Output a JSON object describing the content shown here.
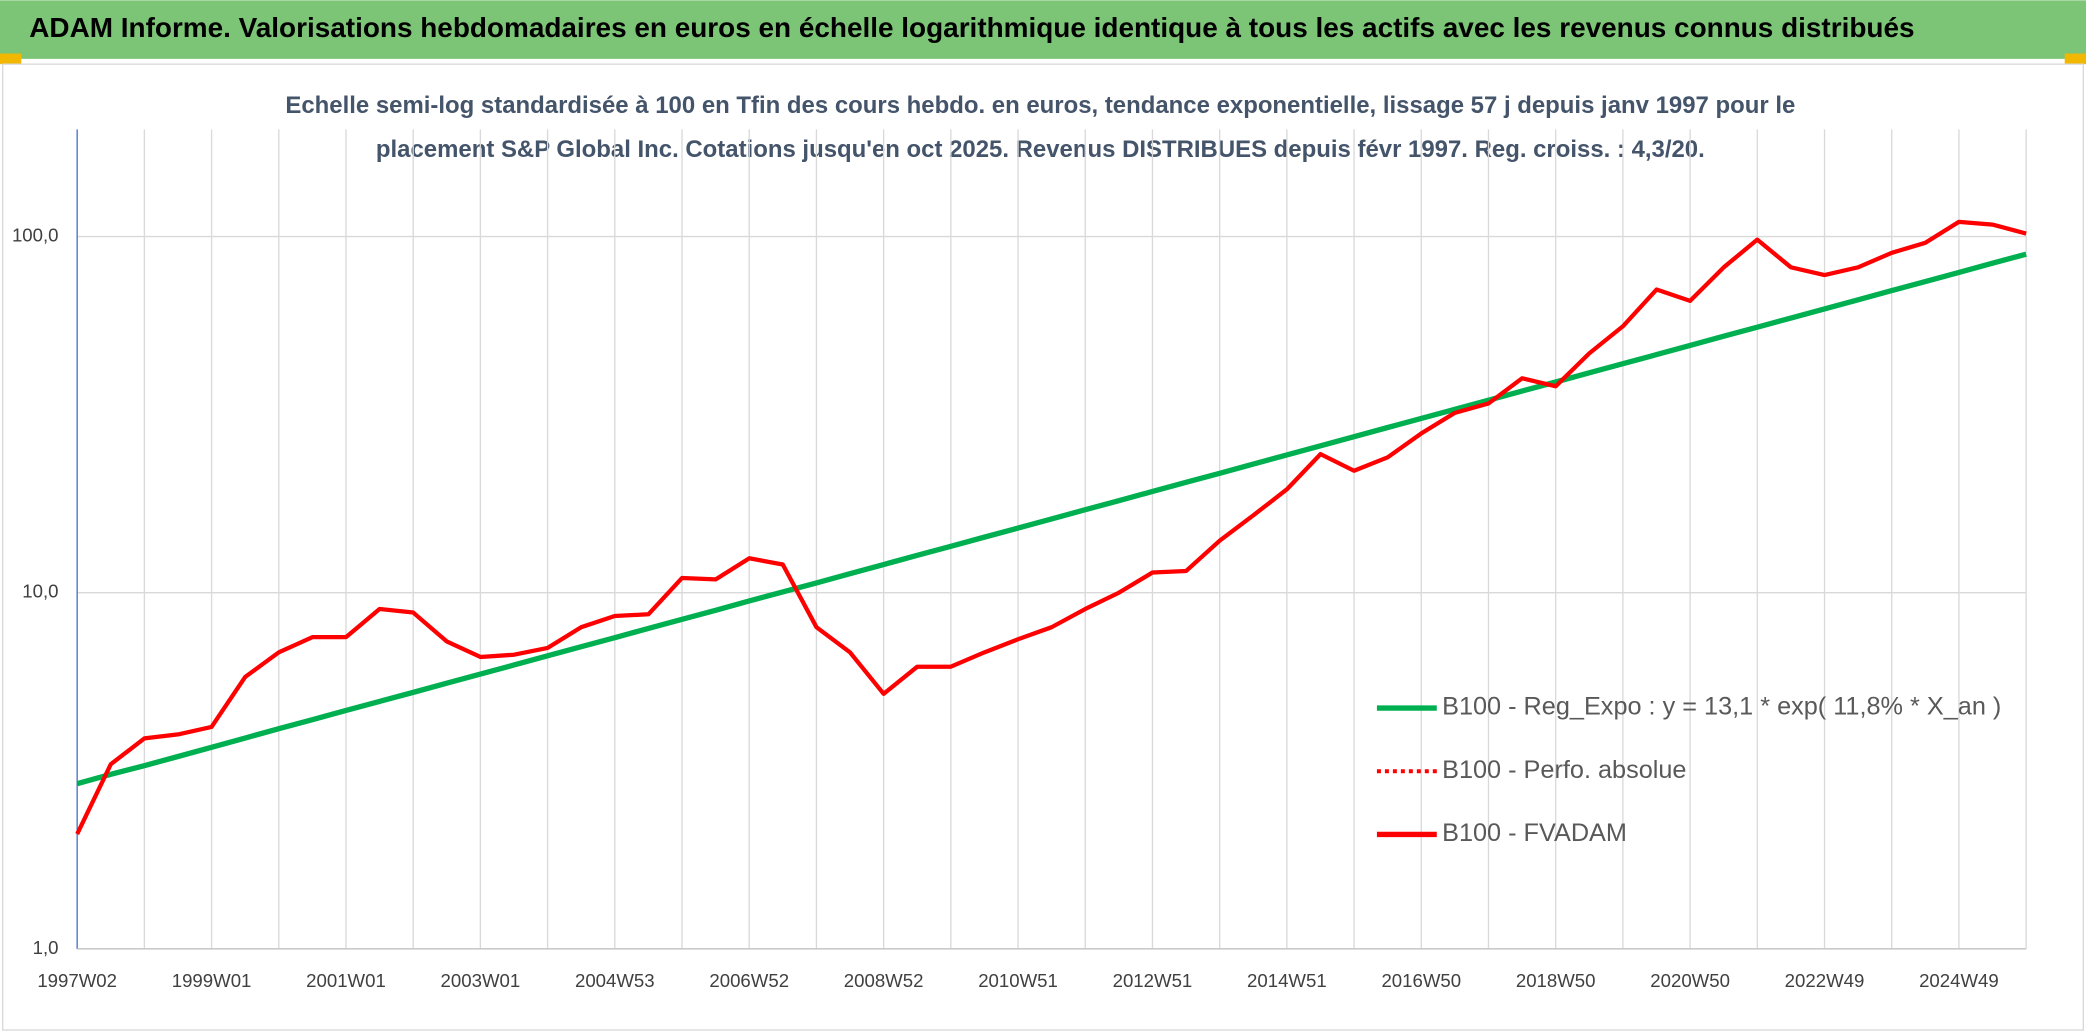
{
  "chart_data": {
    "type": "line",
    "title": "ADAM Informe. Valorisations hebdomadaires en euros en échelle logarithmique identique à tous les actifs avec les revenus connus distribués",
    "subtitle": [
      "Echelle semi-log standardisée à 100 en Tfin des cours hebdo. en euros, tendance exponentielle, lissage 57 j depuis janv 1997 pour le",
      "placement S&P Global Inc. Cotations jusqu'en oct 2025. Revenus DISTRIBUES depuis févr 1997. Reg. croiss. : 4,3/20."
    ],
    "categories": [
      "1997W02",
      null,
      null,
      null,
      "1999W01",
      null,
      null,
      null,
      "2001W01",
      null,
      null,
      null,
      "2003W01",
      null,
      null,
      null,
      "2004W53",
      null,
      null,
      null,
      "2006W52",
      null,
      null,
      null,
      "2008W52",
      null,
      null,
      null,
      "2010W51",
      null,
      null,
      null,
      "2012W51",
      null,
      null,
      null,
      "2014W51",
      null,
      null,
      null,
      "2016W50",
      null,
      null,
      null,
      "2018W50",
      null,
      null,
      null,
      "2020W50",
      null,
      null,
      null,
      "2022W49",
      null,
      null,
      null,
      "2024W49",
      null,
      null
    ],
    "log_scale": true,
    "ylim": [
      1,
      200
    ],
    "yticks": [
      {
        "value": 1,
        "label": "1,0"
      },
      {
        "value": 10,
        "label": "10,0"
      },
      {
        "value": 100,
        "label": "100,0"
      }
    ],
    "grid": true,
    "legend": "right",
    "series": [
      {
        "name": "B100 - Reg_Expo : y = 13,1 * exp( 11,8% *  X_an )",
        "color": "#00b050",
        "line_style": "solid",
        "values": [
          2.91,
          3.09,
          3.27,
          3.47,
          3.68,
          3.91,
          4.15,
          4.4,
          4.67,
          4.95,
          5.25,
          5.57,
          5.91,
          6.27,
          6.65,
          7.05,
          7.48,
          7.94,
          8.42,
          8.93,
          9.48,
          10.05,
          10.66,
          11.31,
          12.0,
          12.73,
          13.5,
          14.32,
          15.19,
          16.12,
          17.1,
          18.14,
          19.24,
          20.41,
          21.65,
          22.97,
          24.37,
          25.85,
          27.42,
          29.09,
          30.86,
          32.73,
          34.72,
          36.83,
          39.07,
          41.45,
          43.97,
          46.64,
          49.48,
          52.48,
          55.67,
          59.06,
          62.65,
          66.46,
          70.5,
          74.79,
          79.33,
          84.16,
          89.27
        ]
      },
      {
        "name": "B100 - Perfo. absolue",
        "color": "#ff0000",
        "line_style": "dotted",
        "values": [
          null,
          null,
          null,
          null,
          null,
          null,
          null,
          null,
          null,
          null,
          null,
          null,
          null,
          null,
          null,
          null,
          null,
          null,
          null,
          null,
          null,
          null,
          null,
          null,
          null,
          null,
          null,
          null,
          null,
          null,
          null,
          null,
          null,
          null,
          null,
          null,
          null,
          null,
          null,
          null,
          null,
          null,
          null,
          null,
          null,
          null,
          null,
          null,
          null,
          null,
          null,
          null,
          null,
          null,
          null,
          null,
          null,
          null,
          null
        ]
      },
      {
        "name": "B100 - FVADAM",
        "color": "#ff0000",
        "line_style": "solid",
        "values": [
          2.1,
          3.3,
          3.9,
          4.0,
          4.2,
          5.8,
          6.8,
          7.5,
          7.5,
          9.0,
          8.8,
          7.3,
          6.6,
          6.7,
          7.0,
          8.0,
          8.6,
          8.7,
          11.0,
          10.9,
          12.5,
          12.0,
          8.0,
          6.8,
          5.2,
          6.2,
          6.2,
          6.8,
          7.4,
          8.0,
          9.0,
          10.0,
          11.4,
          11.5,
          14.0,
          16.5,
          19.5,
          24.5,
          22.0,
          24.0,
          28.0,
          32.0,
          34.0,
          40.0,
          38.0,
          47.0,
          56.0,
          71.0,
          66.0,
          82.0,
          98.0,
          82.0,
          78.0,
          82.0,
          90.0,
          96.0,
          110.0,
          108.0,
          102.0
        ]
      }
    ]
  }
}
